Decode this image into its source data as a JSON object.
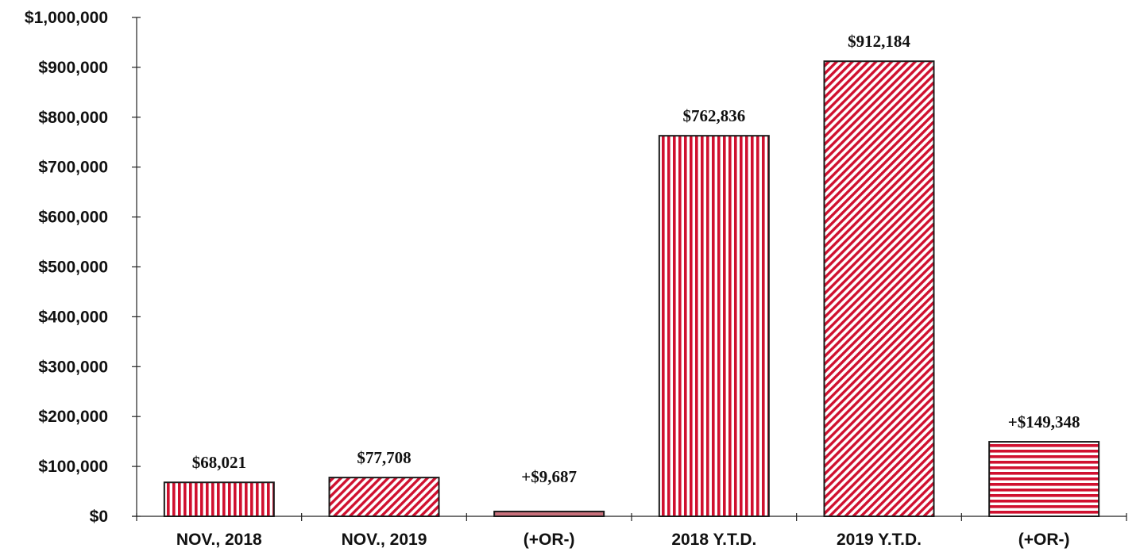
{
  "chart_data": {
    "type": "bar",
    "categories": [
      "NOV., 2018",
      "NOV., 2019",
      "(+OR-)",
      "2018 Y.T.D.",
      "2019 Y.T.D.",
      "(+OR-)"
    ],
    "values": [
      68021,
      77708,
      9687,
      762836,
      912184,
      149348
    ],
    "data_labels": [
      "$68,021",
      "$77,708",
      "+$9,687",
      "$762,836",
      "$912,184",
      "+$149,348"
    ],
    "patterns": [
      "vertical",
      "diagonal",
      "solid",
      "vertical",
      "diagonal",
      "horizontal"
    ],
    "ylim": [
      0,
      1000000
    ],
    "yticks": [
      0,
      100000,
      200000,
      300000,
      400000,
      500000,
      600000,
      700000,
      800000,
      900000,
      1000000
    ],
    "ytick_labels": [
      "$0",
      "$100,000",
      "$200,000",
      "$300,000",
      "$400,000",
      "$500,000",
      "$600,000",
      "$700,000",
      "$800,000",
      "$900,000",
      "$1,000,000"
    ],
    "title": "",
    "xlabel": "",
    "ylabel": "",
    "grid": false,
    "colors": {
      "bar": "#d0102f",
      "bar_solid": "#c9717c",
      "stripe_bg": "#ffffff",
      "axis": "#222222"
    }
  }
}
